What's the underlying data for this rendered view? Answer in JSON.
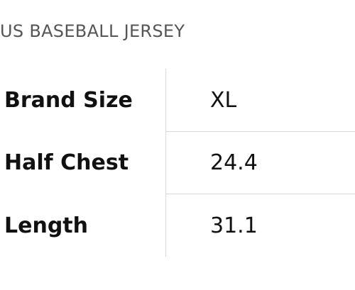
{
  "header": {
    "title": "US BASEBALL JERSEY"
  },
  "table": {
    "rows": [
      [
        "Brand Size",
        "XL"
      ],
      [
        "Half Chest",
        24.4
      ],
      [
        "Length",
        31.1
      ]
    ]
  }
}
